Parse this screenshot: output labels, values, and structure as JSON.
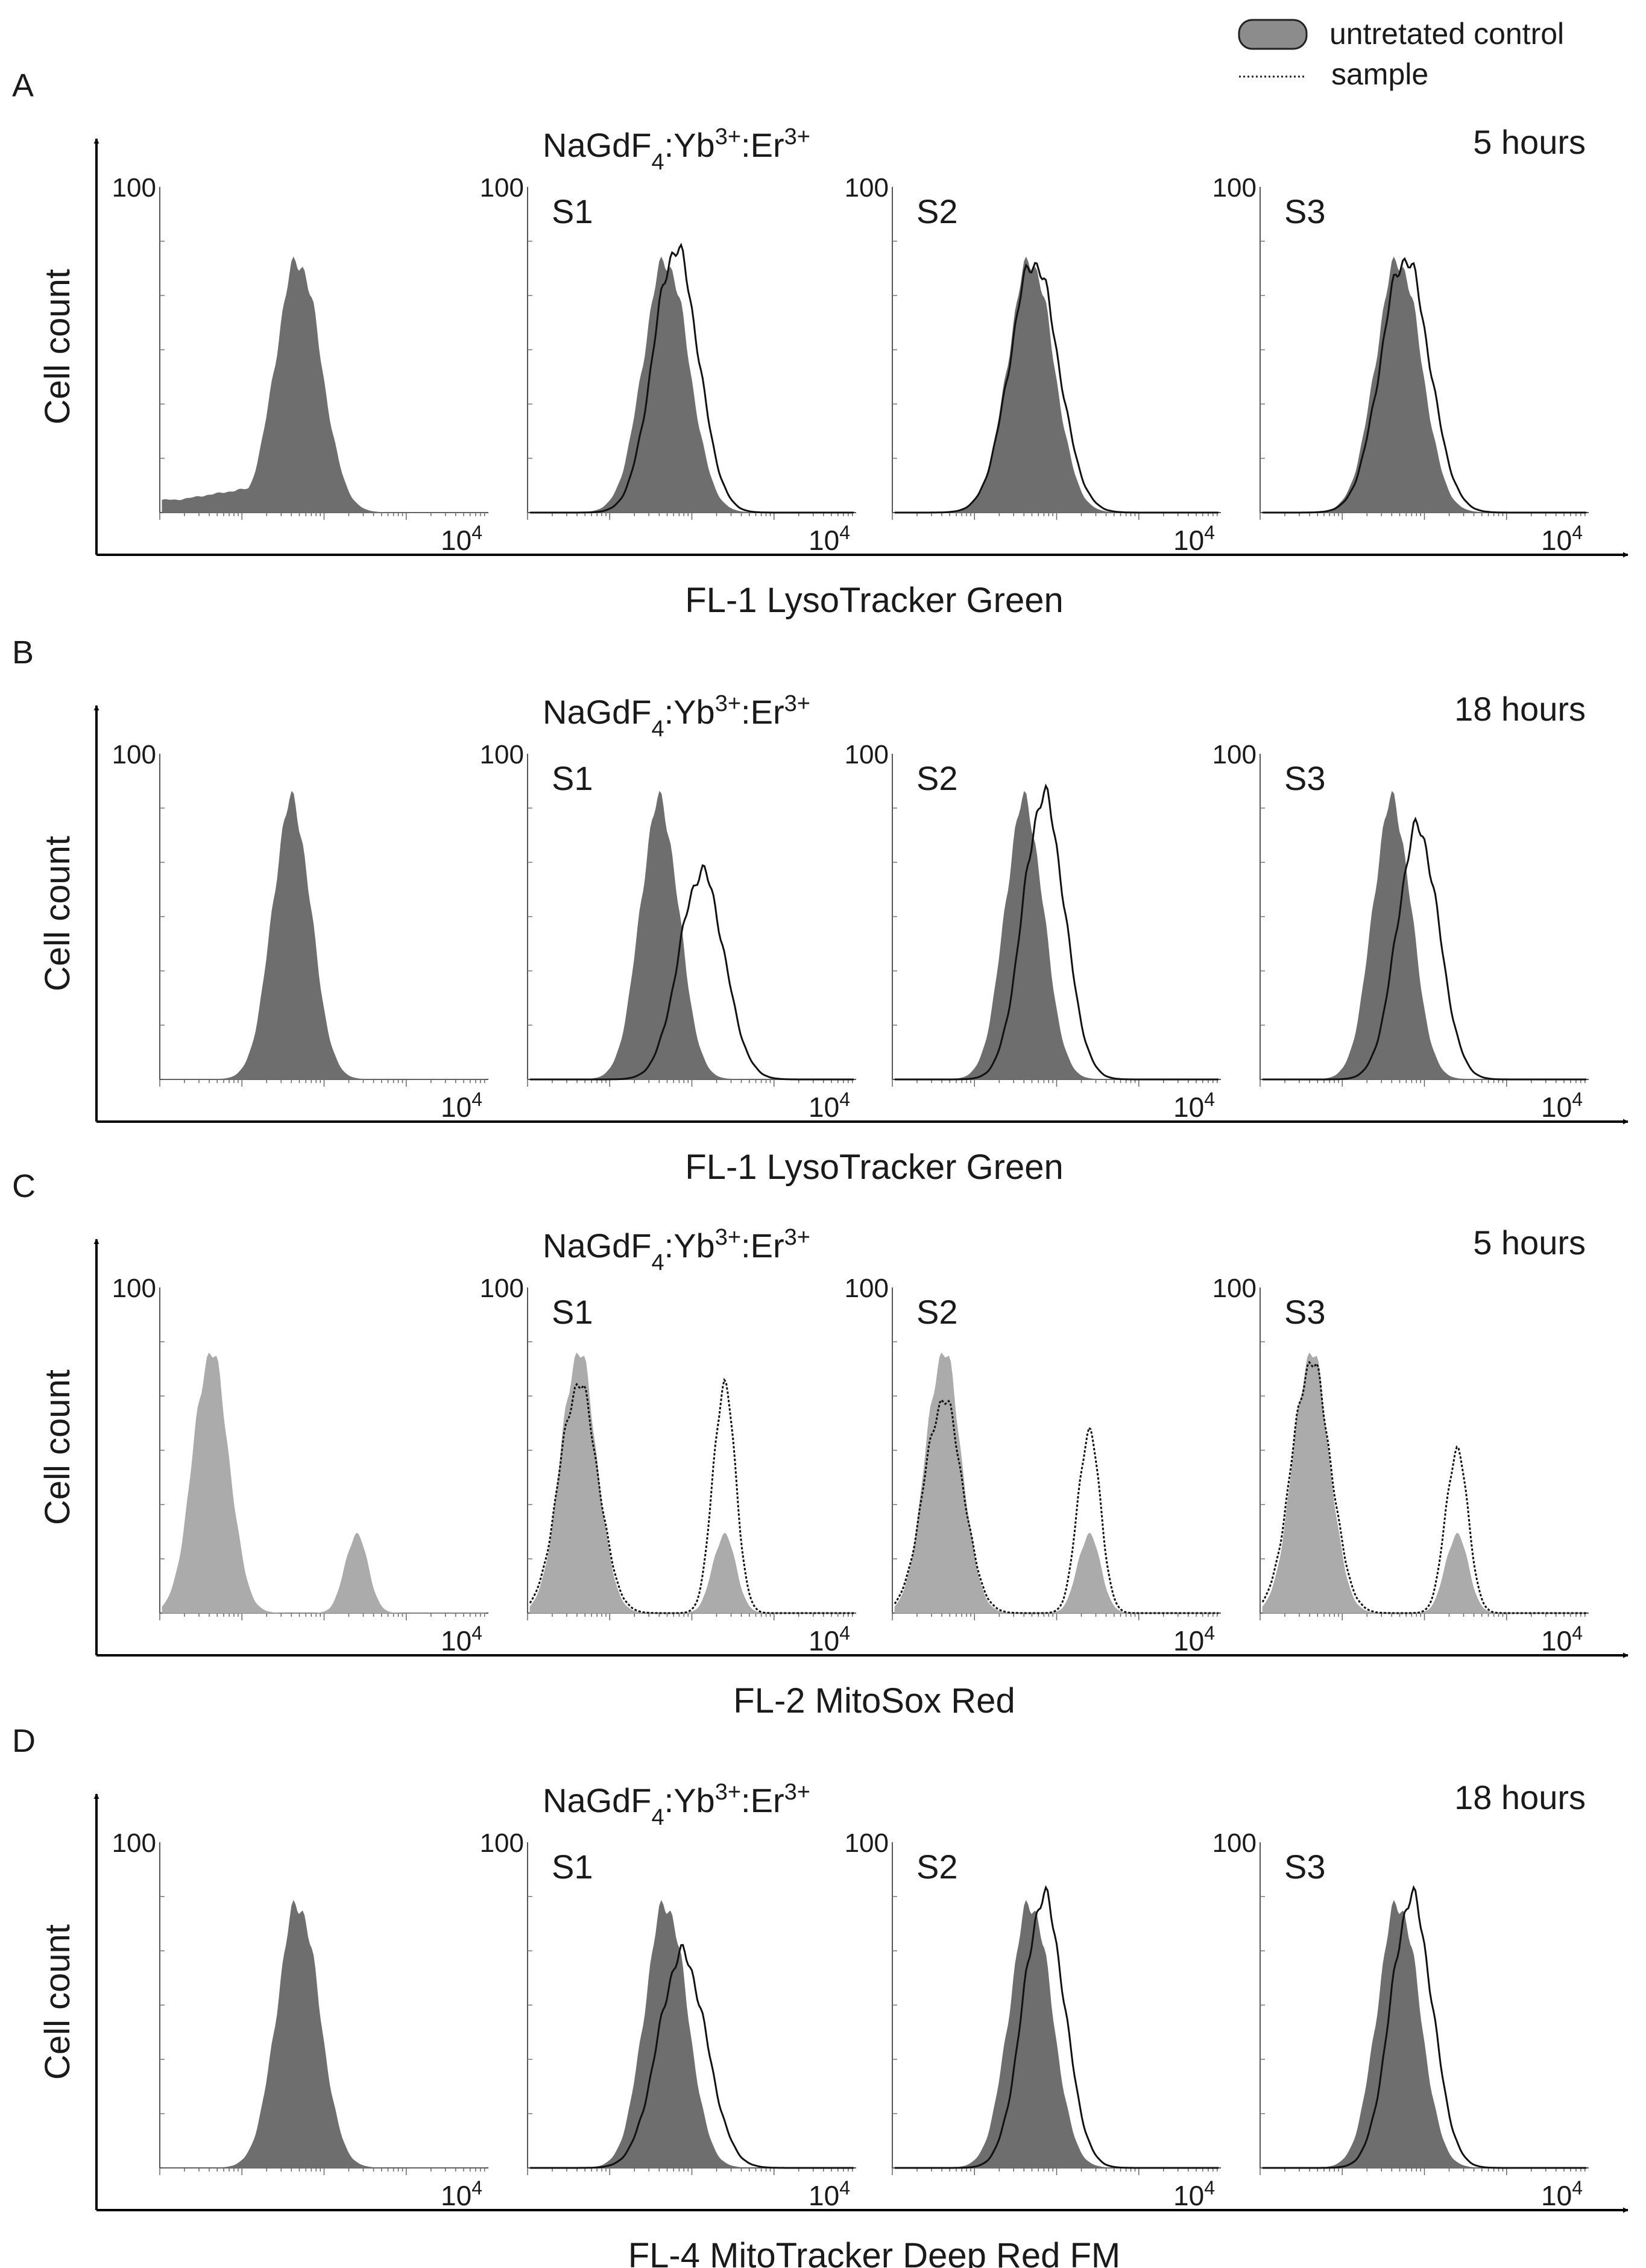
{
  "legend": {
    "control_label": "untretated control",
    "sample_label": "sample",
    "control_fill": "#8c8c8c"
  },
  "colors": {
    "dark_fill": "#6e6e6e",
    "light_fill": "#ababab",
    "sample_line": "#111111",
    "axis": "#000000"
  },
  "chart_data": [
    {
      "type": "histogram",
      "panel_letter": "A",
      "title": "NaGdF4:Yb3+:Er3+",
      "title_parts": [
        "NaGdF",
        "4",
        ":Yb",
        "3+",
        ":Er",
        "3+"
      ],
      "time_label": "5 hours",
      "xlabel": "FL-1 LysoTracker Green",
      "ylabel": "Cell count",
      "y_max_label": "100",
      "x_max_label": "10",
      "x_max_exp": "4",
      "x_scale": "log",
      "control_shade": "dark",
      "sample_style": "solid",
      "subplots": [
        {
          "label": "",
          "control": {
            "peaks": [
              {
                "center": 0.42,
                "width": 0.07,
                "height": 0.8
              }
            ],
            "left_tail": true
          },
          "sample": null
        },
        {
          "label": "S1",
          "control": {
            "peaks": [
              {
                "center": 0.42,
                "width": 0.07,
                "height": 0.8
              }
            ]
          },
          "sample": {
            "peaks": [
              {
                "center": 0.45,
                "width": 0.07,
                "height": 0.84
              }
            ]
          }
        },
        {
          "label": "S2",
          "control": {
            "peaks": [
              {
                "center": 0.42,
                "width": 0.07,
                "height": 0.8
              }
            ]
          },
          "sample": {
            "peaks": [
              {
                "center": 0.43,
                "width": 0.075,
                "height": 0.8
              }
            ]
          }
        },
        {
          "label": "S3",
          "control": {
            "peaks": [
              {
                "center": 0.42,
                "width": 0.07,
                "height": 0.8
              }
            ]
          },
          "sample": {
            "peaks": [
              {
                "center": 0.44,
                "width": 0.075,
                "height": 0.81
              }
            ]
          }
        }
      ]
    },
    {
      "type": "histogram",
      "panel_letter": "B",
      "title": "NaGdF4:Yb3+:Er3+",
      "title_parts": [
        "NaGdF",
        "4",
        ":Yb",
        "3+",
        ":Er",
        "3+"
      ],
      "time_label": "18 hours",
      "xlabel": "FL-1 LysoTracker Green",
      "ylabel": "Cell count",
      "y_max_label": "100",
      "x_max_label": "10",
      "x_max_exp": "4",
      "x_scale": "log",
      "control_shade": "dark",
      "sample_style": "solid",
      "subplots": [
        {
          "label": "",
          "control": {
            "peaks": [
              {
                "center": 0.4,
                "width": 0.06,
                "height": 0.88
              }
            ]
          },
          "sample": null
        },
        {
          "label": "S1",
          "control": {
            "peaks": [
              {
                "center": 0.4,
                "width": 0.06,
                "height": 0.88
              }
            ]
          },
          "sample": {
            "peaks": [
              {
                "center": 0.53,
                "width": 0.07,
                "height": 0.66
              }
            ]
          }
        },
        {
          "label": "S2",
          "control": {
            "peaks": [
              {
                "center": 0.4,
                "width": 0.06,
                "height": 0.88
              }
            ]
          },
          "sample": {
            "peaks": [
              {
                "center": 0.46,
                "width": 0.065,
                "height": 0.9
              }
            ]
          }
        },
        {
          "label": "S3",
          "control": {
            "peaks": [
              {
                "center": 0.4,
                "width": 0.06,
                "height": 0.88
              }
            ]
          },
          "sample": {
            "peaks": [
              {
                "center": 0.48,
                "width": 0.065,
                "height": 0.8
              }
            ]
          }
        }
      ]
    },
    {
      "type": "histogram",
      "panel_letter": "C",
      "title": "NaGdF4:Yb3+:Er3+",
      "title_parts": [
        "NaGdF",
        "4",
        ":Yb",
        "3+",
        ":Er",
        "3+"
      ],
      "time_label": "5 hours",
      "xlabel": "FL-2 MitoSox Red",
      "ylabel": "Cell count",
      "y_max_label": "100",
      "x_max_label": "10",
      "x_max_exp": "4",
      "x_scale": "log",
      "control_shade": "light",
      "sample_style": "dotted",
      "subplots": [
        {
          "label": "",
          "control": {
            "peaks": [
              {
                "center": 0.15,
                "width": 0.055,
                "height": 0.83
              },
              {
                "center": 0.6,
                "width": 0.035,
                "height": 0.25
              }
            ]
          },
          "sample": null
        },
        {
          "label": "S1",
          "control": {
            "peaks": [
              {
                "center": 0.15,
                "width": 0.055,
                "height": 0.83
              },
              {
                "center": 0.6,
                "width": 0.035,
                "height": 0.25
              }
            ]
          },
          "sample": {
            "peaks": [
              {
                "center": 0.15,
                "width": 0.06,
                "height": 0.73
              },
              {
                "center": 0.6,
                "width": 0.035,
                "height": 0.73
              }
            ]
          }
        },
        {
          "label": "S2",
          "control": {
            "peaks": [
              {
                "center": 0.15,
                "width": 0.055,
                "height": 0.83
              },
              {
                "center": 0.6,
                "width": 0.035,
                "height": 0.25
              }
            ]
          },
          "sample": {
            "peaks": [
              {
                "center": 0.15,
                "width": 0.06,
                "height": 0.68
              },
              {
                "center": 0.6,
                "width": 0.035,
                "height": 0.58
              }
            ]
          }
        },
        {
          "label": "S3",
          "control": {
            "peaks": [
              {
                "center": 0.15,
                "width": 0.055,
                "height": 0.83
              },
              {
                "center": 0.6,
                "width": 0.035,
                "height": 0.25
              }
            ]
          },
          "sample": {
            "peaks": [
              {
                "center": 0.15,
                "width": 0.06,
                "height": 0.8
              },
              {
                "center": 0.6,
                "width": 0.035,
                "height": 0.52
              }
            ]
          }
        }
      ]
    },
    {
      "type": "histogram",
      "panel_letter": "D",
      "title": "NaGdF4:Yb3+:Er3+",
      "title_parts": [
        "NaGdF",
        "4",
        ":Yb",
        "3+",
        ":Er",
        "3+"
      ],
      "time_label": "18 hours",
      "xlabel": "FL-4 MitoTracker Deep Red FM",
      "ylabel": "Cell count",
      "y_max_label": "100",
      "x_max_label": "10",
      "x_max_exp": "4",
      "x_scale": "log",
      "control_shade": "dark",
      "sample_style": "solid",
      "subplots": [
        {
          "label": "",
          "control": {
            "peaks": [
              {
                "center": 0.42,
                "width": 0.065,
                "height": 0.84
              }
            ]
          },
          "sample": null
        },
        {
          "label": "S1",
          "control": {
            "peaks": [
              {
                "center": 0.42,
                "width": 0.065,
                "height": 0.84
              }
            ]
          },
          "sample": {
            "peaks": [
              {
                "center": 0.47,
                "width": 0.075,
                "height": 0.68
              }
            ]
          }
        },
        {
          "label": "S2",
          "control": {
            "peaks": [
              {
                "center": 0.42,
                "width": 0.065,
                "height": 0.84
              }
            ]
          },
          "sample": {
            "peaks": [
              {
                "center": 0.46,
                "width": 0.065,
                "height": 0.86
              }
            ]
          }
        },
        {
          "label": "S3",
          "control": {
            "peaks": [
              {
                "center": 0.42,
                "width": 0.065,
                "height": 0.84
              }
            ]
          },
          "sample": {
            "peaks": [
              {
                "center": 0.46,
                "width": 0.065,
                "height": 0.86
              }
            ]
          }
        }
      ]
    }
  ]
}
